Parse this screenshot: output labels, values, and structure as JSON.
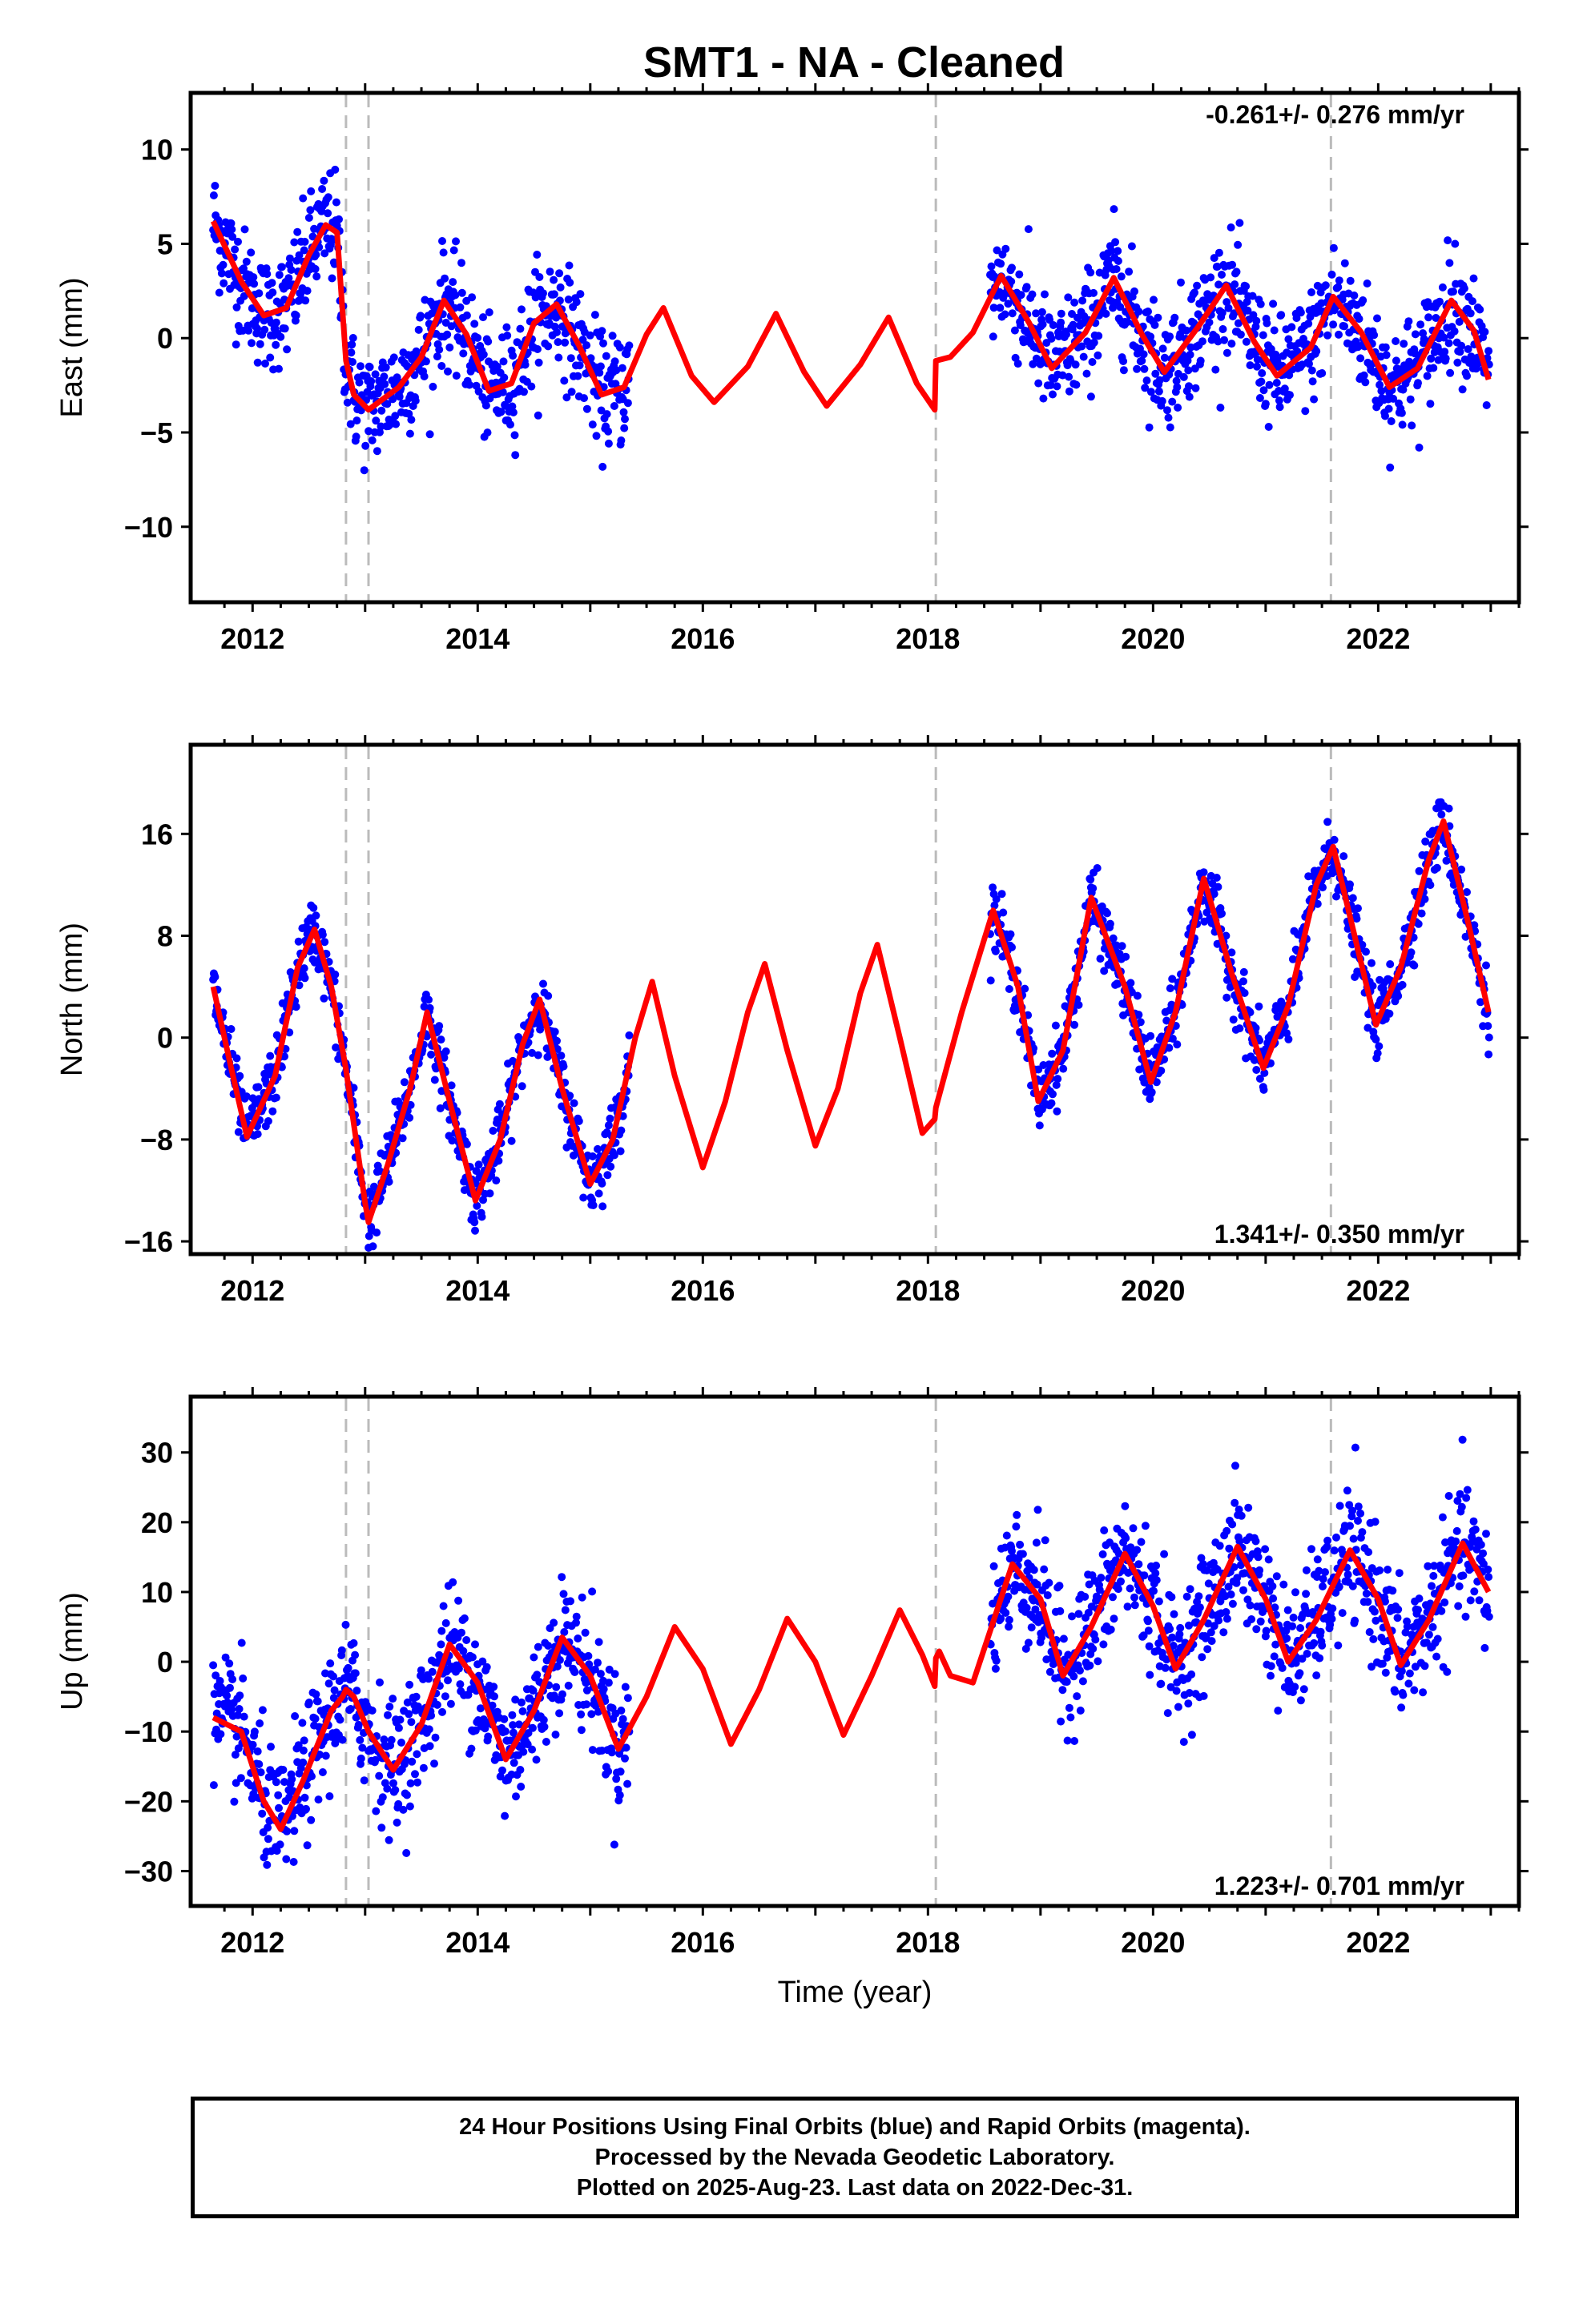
{
  "chart_data": {
    "type": "scatter",
    "title": "SMT1  - NA - Cleaned",
    "xlabel": "Time (year)",
    "xlim": [
      2011.45,
      2023.25
    ],
    "xticks": [
      "2012",
      "2014",
      "2016",
      "2018",
      "2020",
      "2022"
    ],
    "equipment_change_lines": [
      2012.83,
      2013.03,
      2018.07,
      2021.58
    ],
    "colors": {
      "final_orbits": "#0000ff",
      "model": "#ff0000",
      "breaks": "#bbbbbb"
    },
    "grid": false,
    "panels": [
      {
        "name": "East",
        "ylabel": "East (mm)",
        "ylim": [
          -14,
          13
        ],
        "yticks": [
          10,
          5,
          0,
          -5,
          -10
        ],
        "rate_label": "-0.261+/- 0.276 mm/yr",
        "rate_position": "top-right",
        "model": {
          "x": [
            2011.65,
            2011.9,
            2012.1,
            2012.3,
            2012.5,
            2012.65,
            2012.75,
            2012.83,
            2012.9,
            2013.03,
            2013.3,
            2013.5,
            2013.7,
            2013.9,
            2014.1,
            2014.3,
            2014.5,
            2014.7,
            2014.9,
            2015.1,
            2015.3,
            2015.5,
            2015.65,
            2015.9,
            2016.1,
            2016.4,
            2016.65,
            2016.9,
            2017.1,
            2017.4,
            2017.65,
            2017.9,
            2018.06,
            2018.07,
            2018.2,
            2018.4,
            2018.65,
            2018.9,
            2019.1,
            2019.4,
            2019.65,
            2019.9,
            2020.1,
            2020.4,
            2020.65,
            2020.9,
            2021.1,
            2021.4,
            2021.6,
            2021.85,
            2022.1,
            2022.35,
            2022.65,
            2022.85,
            2022.98
          ],
          "y": [
            6.2,
            3.0,
            1.2,
            1.6,
            4.4,
            6.0,
            5.6,
            -1.2,
            -3.0,
            -3.8,
            -2.6,
            -1.0,
            2.0,
            0.2,
            -2.8,
            -2.4,
            0.8,
            1.8,
            -0.4,
            -3.0,
            -2.6,
            0.2,
            1.6,
            -2.0,
            -3.4,
            -1.5,
            1.3,
            -1.8,
            -3.6,
            -1.4,
            1.1,
            -2.4,
            -3.8,
            -1.2,
            -1.0,
            0.3,
            3.3,
            0.8,
            -1.6,
            0.3,
            3.2,
            0.2,
            -1.8,
            0.6,
            2.8,
            -0.2,
            -2.0,
            -0.5,
            2.2,
            0.3,
            -2.6,
            -1.6,
            2.0,
            0.4,
            -2.2
          ]
        }
      },
      {
        "name": "North",
        "ylabel": "North (mm)",
        "ylim": [
          -17,
          23
        ],
        "yticks": [
          16,
          8,
          0,
          -8,
          -16
        ],
        "rate_label": "1.341+/- 0.350 mm/yr",
        "rate_position": "bottom-right",
        "model": {
          "x": [
            2011.65,
            2011.8,
            2011.95,
            2012.2,
            2012.4,
            2012.55,
            2012.7,
            2012.83,
            2013.0,
            2013.03,
            2013.2,
            2013.4,
            2013.55,
            2013.75,
            2013.98,
            2014.2,
            2014.4,
            2014.55,
            2014.75,
            2015.0,
            2015.2,
            2015.4,
            2015.55,
            2015.75,
            2016.0,
            2016.2,
            2016.4,
            2016.55,
            2016.75,
            2017.0,
            2017.2,
            2017.4,
            2017.55,
            2017.75,
            2017.95,
            2018.06,
            2018.07,
            2018.3,
            2018.58,
            2018.8,
            2018.98,
            2019.2,
            2019.45,
            2019.75,
            2019.98,
            2020.2,
            2020.45,
            2020.7,
            2020.98,
            2021.2,
            2021.45,
            2021.6,
            2021.98,
            2022.2,
            2022.45,
            2022.58,
            2022.8,
            2022.98
          ],
          "y": [
            4.0,
            -2.0,
            -7.8,
            -3.0,
            5.5,
            8.5,
            4.0,
            -2.5,
            -13.0,
            -14.5,
            -10.0,
            -4.0,
            2.0,
            -5.0,
            -12.8,
            -8.0,
            -0.5,
            3.0,
            -4.0,
            -11.5,
            -8.0,
            0.0,
            4.4,
            -3.0,
            -10.2,
            -5.0,
            2.0,
            5.8,
            -1.0,
            -8.5,
            -4.0,
            3.5,
            7.3,
            0.0,
            -7.5,
            -6.4,
            -5.5,
            2.0,
            10.0,
            4.0,
            -5.0,
            -1.0,
            11.0,
            4.0,
            -3.5,
            2.0,
            12.5,
            5.0,
            -2.4,
            2.5,
            12.0,
            15.0,
            1.0,
            5.5,
            14.0,
            17.0,
            9.0,
            2.0
          ]
        }
      },
      {
        "name": "Up",
        "ylabel": "Up (mm)",
        "ylim": [
          -35,
          38
        ],
        "yticks": [
          30,
          20,
          10,
          0,
          -10,
          -20,
          -30
        ],
        "rate_label": "1.223+/- 0.701 mm/yr",
        "rate_position": "bottom-right",
        "model": {
          "x": [
            2011.65,
            2011.9,
            2012.1,
            2012.25,
            2012.45,
            2012.7,
            2012.8,
            2012.83,
            2012.9,
            2013.03,
            2013.25,
            2013.5,
            2013.75,
            2014.0,
            2014.25,
            2014.5,
            2014.75,
            2015.0,
            2015.25,
            2015.5,
            2015.75,
            2016.0,
            2016.25,
            2016.5,
            2016.75,
            2017.0,
            2017.25,
            2017.5,
            2017.75,
            2017.95,
            2018.06,
            2018.07,
            2018.1,
            2018.2,
            2018.4,
            2018.75,
            2019.0,
            2019.2,
            2019.45,
            2019.75,
            2020.0,
            2020.2,
            2020.45,
            2020.75,
            2021.0,
            2021.2,
            2021.45,
            2021.75,
            2022.0,
            2022.2,
            2022.45,
            2022.75,
            2022.98
          ],
          "y": [
            -8.0,
            -10.0,
            -20.0,
            -24.0,
            -17.0,
            -7.0,
            -5.0,
            -4.0,
            -5.0,
            -10.0,
            -15.5,
            -9.0,
            2.5,
            -3.0,
            -14.0,
            -7.0,
            3.5,
            -2.0,
            -12.5,
            -5.0,
            5.0,
            -1.0,
            -11.8,
            -4.0,
            6.2,
            0.0,
            -10.5,
            -2.0,
            7.4,
            1.0,
            -3.5,
            0.5,
            1.5,
            -2.0,
            -3.0,
            14.0,
            9.0,
            -2.0,
            5.0,
            15.5,
            8.0,
            -1.0,
            6.0,
            16.5,
            9.0,
            0.0,
            6.0,
            16.0,
            9.0,
            -0.5,
            6.0,
            17.0,
            10.0
          ]
        },
        "xlabel": "Time (year)"
      }
    ],
    "footer": [
      "24 Hour Positions Using Final Orbits (blue) and Rapid Orbits (magenta).",
      "Processed by the Nevada Geodetic Laboratory.",
      "Plotted on 2025-Aug-23. Last data on 2022-Dec-31."
    ]
  }
}
